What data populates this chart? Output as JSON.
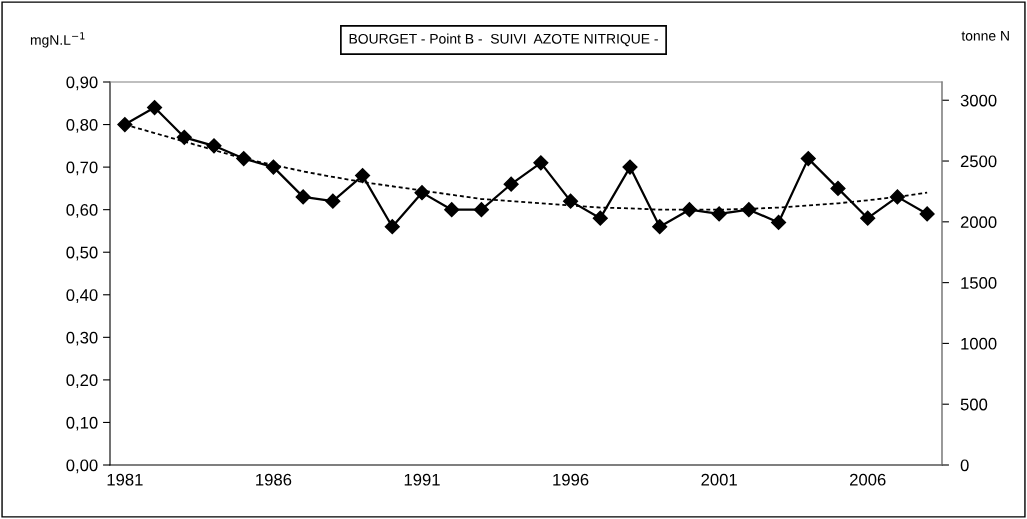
{
  "chart_data": {
    "type": "line",
    "title": "BOURGET - Point B -  SUIVI  AZOTE NITRIQUE -",
    "ylabel": "mgN.L$^{−1}$",
    "y2label": "tonne N",
    "categories": [
      "1981",
      null,
      null,
      null,
      null,
      "1986",
      null,
      null,
      null,
      null,
      "1991",
      null,
      null,
      null,
      null,
      "1996",
      null,
      null,
      null,
      null,
      "2001",
      null,
      null,
      null,
      null,
      "2006",
      null,
      null
    ],
    "series": [
      {
        "color": "#000000",
        "marker": "diamond",
        "line_style": "solid",
        "values": [
          0.8,
          0.84,
          0.77,
          0.75,
          0.72,
          0.7,
          0.63,
          0.62,
          0.68,
          0.56,
          0.64,
          0.6,
          0.6,
          0.66,
          0.71,
          0.62,
          0.58,
          0.7,
          0.56,
          0.6,
          0.59,
          0.6,
          0.57,
          0.72,
          0.65,
          0.58,
          0.63,
          0.59
        ]
      },
      {
        "type": "line",
        "color": "#000000",
        "marker": "none",
        "line_style": "dashed",
        "values": [
          0.8,
          0.78,
          0.76,
          0.74,
          0.72,
          0.705,
          0.69,
          0.677,
          0.665,
          0.655,
          0.645,
          0.635,
          0.625,
          0.62,
          0.615,
          0.61,
          0.605,
          0.603,
          0.6,
          0.6,
          0.6,
          0.602,
          0.605,
          0.61,
          0.615,
          0.622,
          0.63,
          0.64
        ]
      }
    ],
    "ylim": [
      0,
      0.9
    ],
    "yticks": [
      {
        "value": 0,
        "label": "0,00"
      },
      {
        "value": 0.1,
        "label": "0,10"
      },
      {
        "value": 0.2,
        "label": "0,20"
      },
      {
        "value": 0.3,
        "label": "0,30"
      },
      {
        "value": 0.4,
        "label": "0,40"
      },
      {
        "value": 0.5,
        "label": "0,50"
      },
      {
        "value": 0.6,
        "label": "0,60"
      },
      {
        "value": 0.7,
        "label": "0,70"
      },
      {
        "value": 0.8,
        "label": "0,80"
      },
      {
        "value": 0.9,
        "label": "0,90"
      }
    ],
    "y2lim": [
      0,
      3150
    ],
    "y2ticks": [
      0,
      500,
      1000,
      1500,
      2000,
      2500,
      3000
    ],
    "grid": false,
    "legend": false
  }
}
